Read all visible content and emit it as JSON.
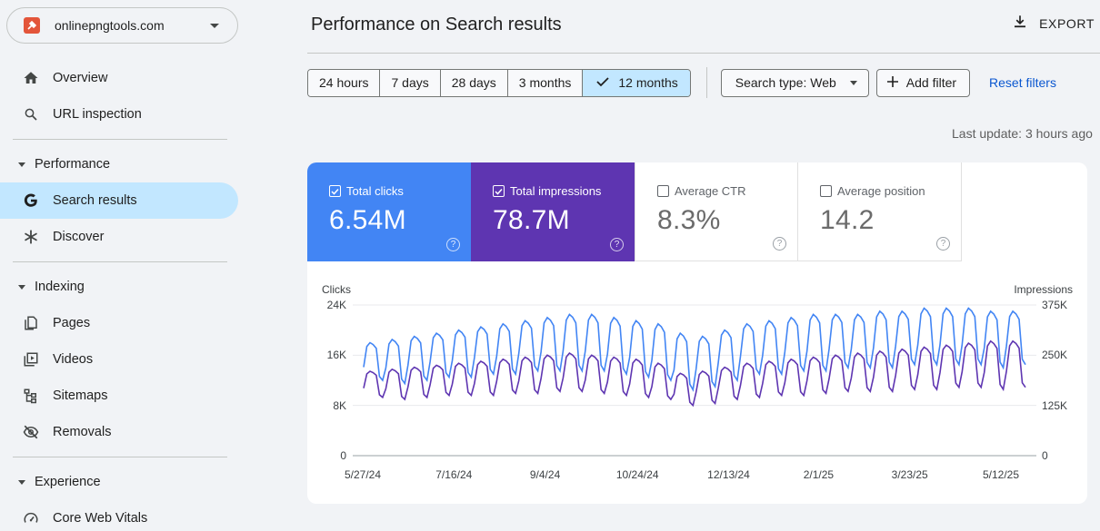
{
  "property": {
    "name": "onlinepngtools.com"
  },
  "sidebar": {
    "items": [
      {
        "label": "Overview"
      },
      {
        "label": "URL inspection"
      }
    ],
    "sections": [
      {
        "title": "Performance",
        "items": [
          {
            "label": "Search results",
            "active": true
          },
          {
            "label": "Discover"
          }
        ]
      },
      {
        "title": "Indexing",
        "items": [
          {
            "label": "Pages"
          },
          {
            "label": "Videos"
          },
          {
            "label": "Sitemaps"
          },
          {
            "label": "Removals"
          }
        ]
      },
      {
        "title": "Experience",
        "items": [
          {
            "label": "Core Web Vitals"
          }
        ]
      }
    ]
  },
  "header": {
    "title": "Performance on Search results",
    "export_label": "EXPORT"
  },
  "filters": {
    "date_ranges": [
      "24 hours",
      "7 days",
      "28 days",
      "3 months",
      "12 months"
    ],
    "selected_range": "12 months",
    "search_type": "Search type: Web",
    "add_filter": "Add filter",
    "reset": "Reset filters"
  },
  "last_update": "Last update: 3 hours ago",
  "metrics": [
    {
      "label": "Total clicks",
      "value": "6.54M",
      "checked": true,
      "color": "#4285f4"
    },
    {
      "label": "Total impressions",
      "value": "78.7M",
      "checked": true,
      "color": "#5e35b1"
    },
    {
      "label": "Average CTR",
      "value": "8.3%",
      "checked": false
    },
    {
      "label": "Average position",
      "value": "14.2",
      "checked": false
    }
  ],
  "chart_data": {
    "type": "line",
    "left_axis": {
      "label": "Clicks",
      "ticks": [
        "24K",
        "16K",
        "8K",
        "0"
      ],
      "range": [
        0,
        24000
      ]
    },
    "right_axis": {
      "label": "Impressions",
      "ticks": [
        "375K",
        "250K",
        "125K",
        "0"
      ],
      "range": [
        0,
        375000
      ]
    },
    "x_ticks": [
      "5/27/24",
      "7/16/24",
      "9/4/24",
      "10/24/24",
      "12/13/24",
      "2/1/25",
      "3/23/25",
      "5/12/25"
    ],
    "series": [
      {
        "name": "Clicks",
        "color": "#4285f4",
        "axis": "left",
        "weekly_peaks": [
          18000,
          18500,
          19000,
          19500,
          20000,
          20500,
          21000,
          21500,
          22000,
          22500,
          22500,
          22000,
          21500,
          21000,
          19500,
          19000,
          20000,
          21000,
          21500,
          22000,
          22500,
          22500,
          22500,
          23000,
          23000,
          23500,
          23500,
          23500,
          23000,
          23000
        ],
        "weekly_troughs": [
          12000,
          11500,
          12000,
          12500,
          12500,
          13000,
          13000,
          13500,
          13500,
          13500,
          13500,
          13000,
          12500,
          12000,
          10500,
          11000,
          12000,
          13000,
          13000,
          13500,
          13500,
          14000,
          14000,
          14000,
          14500,
          14500,
          14500,
          14500,
          14000,
          14500
        ]
      },
      {
        "name": "Impressions",
        "color": "#5e35b1",
        "axis": "right",
        "weekly_peaks": [
          210000,
          215000,
          220000,
          225000,
          230000,
          235000,
          240000,
          245000,
          250000,
          255000,
          250000,
          245000,
          240000,
          230000,
          205000,
          210000,
          220000,
          230000,
          235000,
          240000,
          245000,
          250000,
          255000,
          260000,
          265000,
          270000,
          275000,
          280000,
          285000,
          285000
        ],
        "weekly_troughs": [
          145000,
          140000,
          145000,
          150000,
          150000,
          150000,
          155000,
          155000,
          160000,
          160000,
          155000,
          150000,
          145000,
          140000,
          125000,
          130000,
          140000,
          145000,
          150000,
          150000,
          155000,
          160000,
          160000,
          160000,
          165000,
          165000,
          170000,
          170000,
          165000,
          170000
        ]
      }
    ]
  }
}
